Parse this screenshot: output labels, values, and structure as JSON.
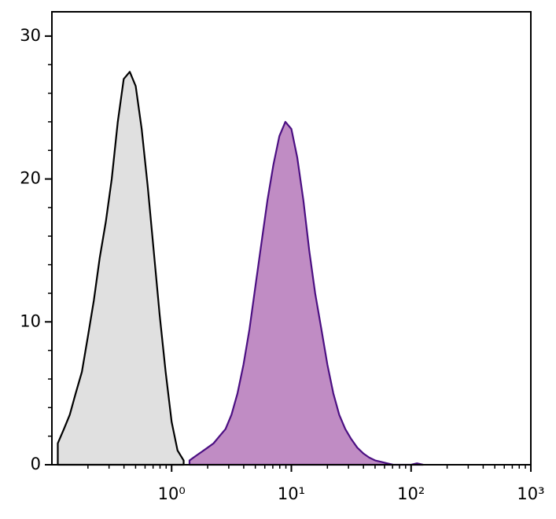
{
  "chart_data": {
    "type": "area",
    "log_x": true,
    "x": [
      0.112,
      0.126,
      0.141,
      0.158,
      0.178,
      0.2,
      0.224,
      0.251,
      0.282,
      0.316,
      0.355,
      0.398,
      0.447,
      0.501,
      0.562,
      0.631,
      0.708,
      0.794,
      0.891,
      1,
      1.12,
      1.26,
      1.41,
      1.58,
      1.78,
      2,
      2.24,
      2.51,
      2.82,
      3.16,
      3.55,
      3.98,
      4.47,
      5.01,
      5.62,
      6.31,
      7.08,
      7.94,
      8.91,
      10,
      11.2,
      12.6,
      14.1,
      15.8,
      17.8,
      20,
      22.4,
      25.1,
      28.2,
      31.6,
      35.5,
      39.8,
      44.7,
      50.1,
      56.2,
      63.1,
      70.8,
      79.4,
      89.1,
      100,
      112,
      126
    ],
    "series": [
      {
        "color": "#000000",
        "fill": "#e0e0e0",
        "values": [
          1.5,
          2.5,
          3.5,
          5,
          6.5,
          9,
          11.5,
          14.5,
          17,
          20,
          24,
          27,
          27.5,
          26.5,
          23.5,
          19.5,
          15,
          10.5,
          6.5,
          3,
          1,
          0.3,
          null,
          null,
          null,
          null,
          null,
          null,
          null,
          null,
          null,
          null,
          null,
          null,
          null,
          null,
          null,
          null,
          null,
          null,
          null,
          null,
          null,
          null,
          null,
          null,
          null,
          null,
          null,
          null,
          null,
          null,
          null,
          null,
          null,
          null,
          null,
          null,
          null,
          null,
          null,
          null
        ]
      },
      {
        "color": "#4b0f82",
        "fill": "#c08cc4",
        "values": [
          null,
          null,
          null,
          null,
          null,
          null,
          null,
          null,
          null,
          null,
          null,
          null,
          null,
          null,
          null,
          null,
          null,
          null,
          null,
          null,
          null,
          null,
          0.3,
          0.6,
          0.9,
          1.2,
          1.5,
          2,
          2.5,
          3.5,
          5,
          7,
          9.5,
          12.5,
          15.5,
          18.5,
          21,
          23,
          24,
          23.5,
          21.5,
          18.5,
          15,
          12,
          9.5,
          7,
          5,
          3.5,
          2.5,
          1.8,
          1.2,
          0.8,
          0.5,
          0.3,
          0.2,
          0.1,
          0,
          0,
          0,
          0,
          0.1,
          0
        ]
      }
    ],
    "xlim": [
      0.1,
      1000
    ],
    "xticks": [
      {
        "value": 1,
        "label": "10⁰"
      },
      {
        "value": 10,
        "label": "10¹"
      },
      {
        "value": 100,
        "label": "10²"
      },
      {
        "value": 1000,
        "label": "10³"
      }
    ],
    "ylim": [
      0,
      31.7
    ],
    "yticks": [
      0,
      10,
      20,
      30
    ]
  }
}
